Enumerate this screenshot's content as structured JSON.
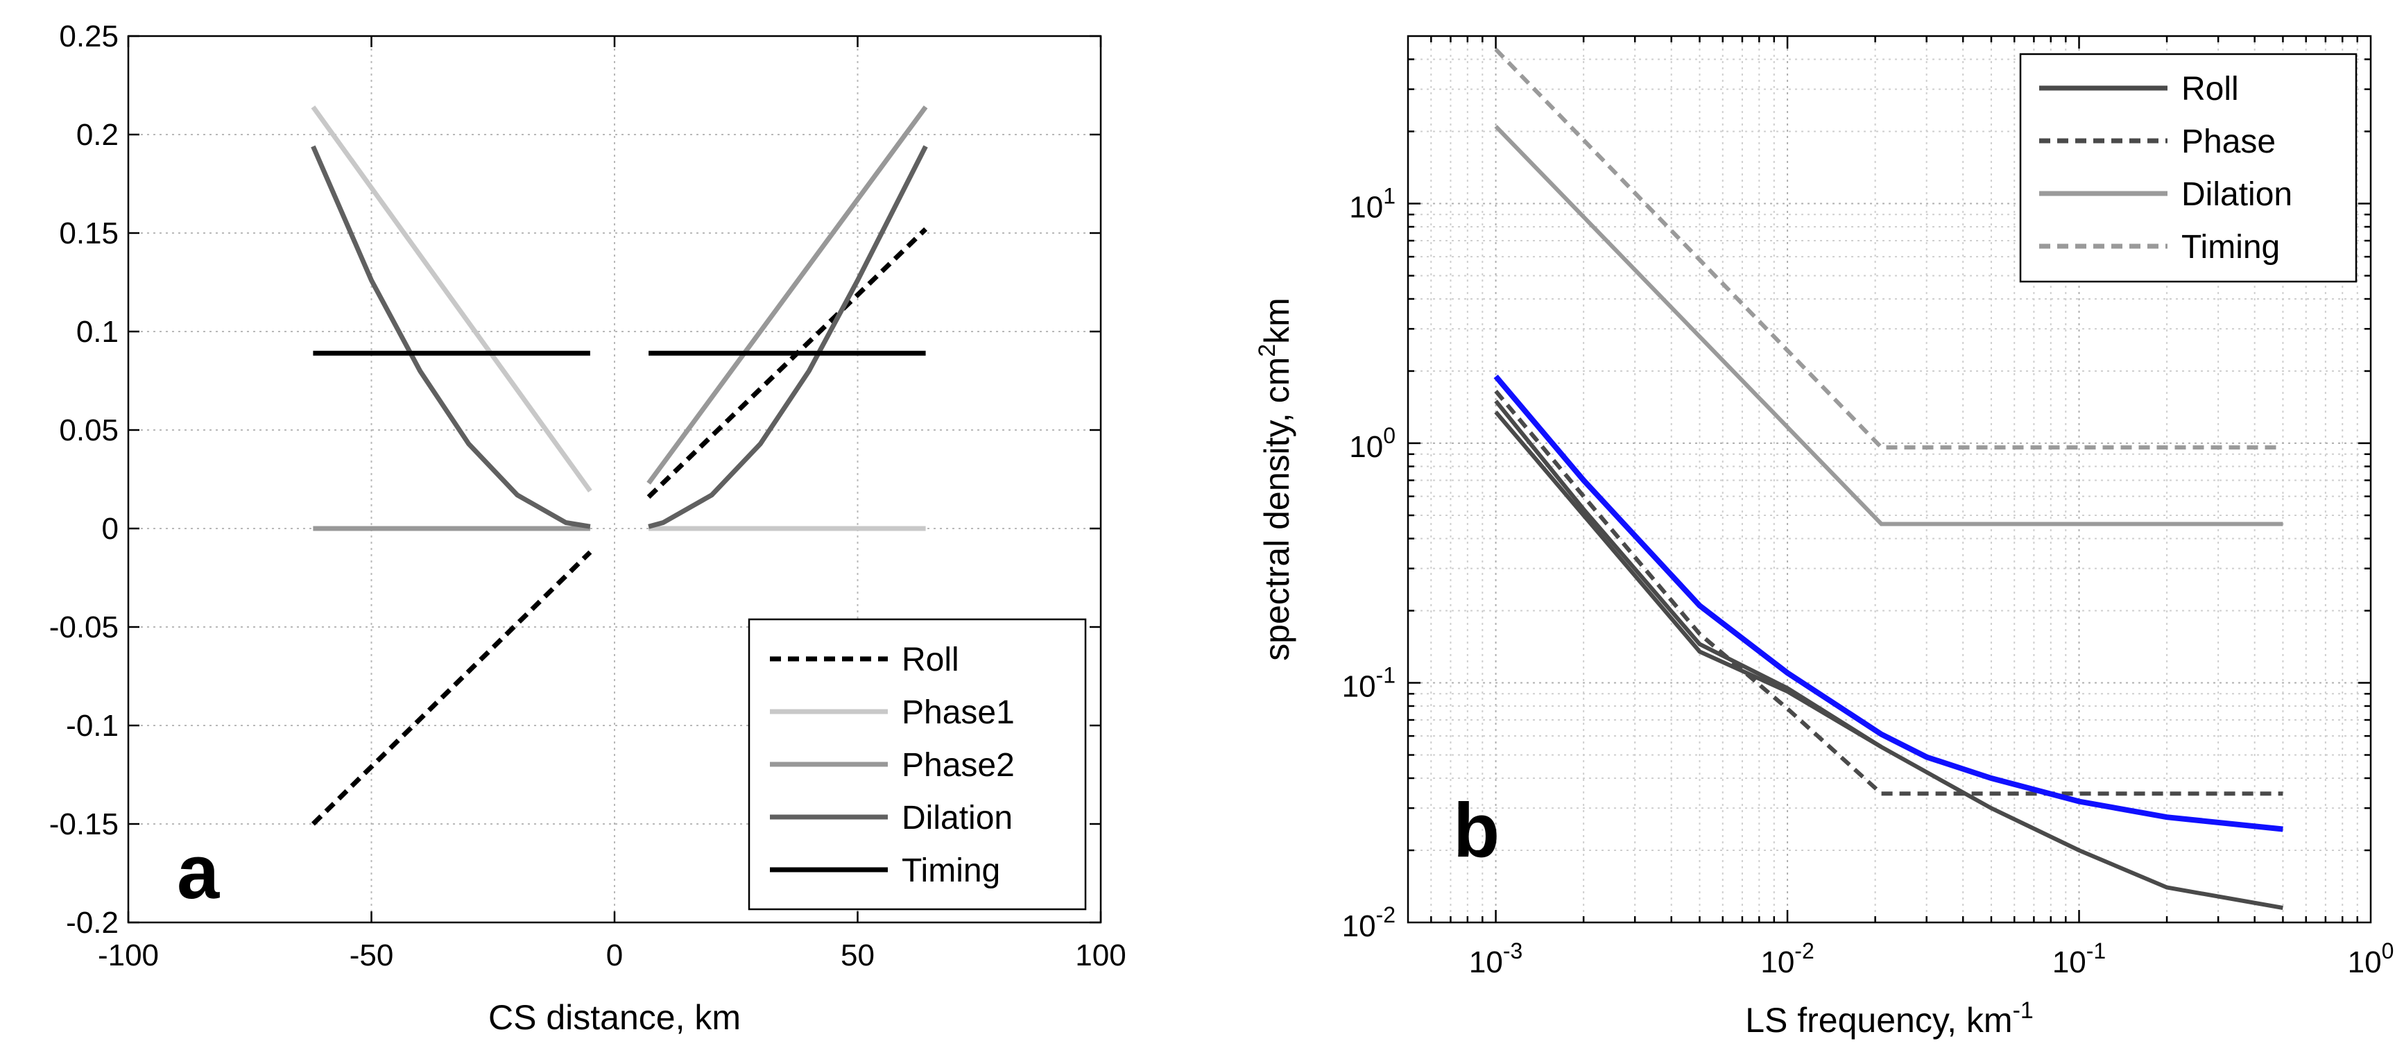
{
  "chart_data": [
    {
      "panel": "a",
      "type": "line",
      "xlabel": "CS distance, km",
      "ylabel": "",
      "xlim": [
        -100,
        100
      ],
      "ylim": [
        -0.2,
        0.25
      ],
      "xticks": [
        -100,
        -50,
        0,
        50,
        100
      ],
      "xtick_labels": [
        "-100",
        "-50",
        "0",
        "50",
        "100"
      ],
      "yticks": [
        -0.2,
        -0.15,
        -0.1,
        -0.05,
        0,
        0.05,
        0.1,
        0.15,
        0.2,
        0.25
      ],
      "ytick_labels": [
        "-0.2",
        "-0.15",
        "-0.1",
        "-0.05",
        "0",
        "0.05",
        "0.1",
        "0.15",
        "0.2",
        "0.25"
      ],
      "grid": true,
      "legend_position": "bottom-right",
      "series": [
        {
          "name": "Roll",
          "style": "dashed",
          "color": "#000000",
          "segments": [
            {
              "x": [
                -62,
                -5
              ],
              "y": [
                -0.15,
                -0.012
              ]
            },
            {
              "x": [
                7,
                64
              ],
              "y": [
                0.016,
                0.152
              ]
            }
          ]
        },
        {
          "name": "Phase1",
          "style": "solid",
          "color": "#c8c8c8",
          "segments": [
            {
              "x": [
                -62,
                -5
              ],
              "y": [
                0.214,
                0.019
              ]
            },
            {
              "x": [
                7,
                64
              ],
              "y": [
                0,
                0
              ]
            }
          ]
        },
        {
          "name": "Phase2",
          "style": "solid",
          "color": "#989898",
          "segments": [
            {
              "x": [
                -62,
                -5
              ],
              "y": [
                0,
                0
              ]
            },
            {
              "x": [
                7,
                64
              ],
              "y": [
                0.023,
                0.214
              ]
            }
          ]
        },
        {
          "name": "Dilation",
          "style": "solid",
          "color": "#606060",
          "segments": [
            {
              "x": [
                -62,
                -50,
                -40,
                -30,
                -20,
                -10,
                -5
              ],
              "y": [
                0.194,
                0.126,
                0.08,
                0.043,
                0.017,
                0.003,
                0.001
              ]
            },
            {
              "x": [
                7,
                10,
                20,
                30,
                40,
                50,
                64
              ],
              "y": [
                0.001,
                0.003,
                0.017,
                0.043,
                0.08,
                0.126,
                0.194
              ]
            }
          ]
        },
        {
          "name": "Timing",
          "style": "solid",
          "color": "#000000",
          "segments": [
            {
              "x": [
                -62,
                -5
              ],
              "y": [
                0.089,
                0.089
              ]
            },
            {
              "x": [
                7,
                64
              ],
              "y": [
                0.089,
                0.089
              ]
            }
          ]
        }
      ]
    },
    {
      "panel": "b",
      "type": "line",
      "xscale": "log",
      "yscale": "log",
      "xlabel": "LS frequency, km",
      "xlabel_superscript": "-1",
      "ylabel": "spectral density, cm",
      "ylabel_superscript": "2",
      "ylabel_suffix": "km",
      "xlim": [
        0.0005,
        1
      ],
      "ylim": [
        0.01,
        50
      ],
      "xtick_exponents": [
        "-3",
        "-2",
        "-1",
        "0"
      ],
      "ytick_exponents": [
        "-2",
        "-1",
        "0",
        "1"
      ],
      "tick_base": "10",
      "grid": true,
      "minor_grid": true,
      "legend_position": "top-right",
      "series": [
        {
          "name": "Roll",
          "style": "solid",
          "color": "#4a4a4a",
          "in_legend": true,
          "x": [
            0.001,
            0.002,
            0.005,
            0.01,
            0.021,
            0.05,
            0.1,
            0.2,
            0.5
          ],
          "y": [
            1.35,
            0.5,
            0.135,
            0.092,
            0.054,
            0.03,
            0.02,
            0.014,
            0.0115
          ]
        },
        {
          "name": "Phase",
          "style": "dashed",
          "color": "#4a4a4a",
          "in_legend": true,
          "x": [
            0.001,
            0.002,
            0.005,
            0.01,
            0.021,
            0.05,
            0.1,
            0.5
          ],
          "y": [
            1.65,
            0.6,
            0.16,
            0.078,
            0.0345,
            0.0345,
            0.0345,
            0.0345
          ]
        },
        {
          "name": "Dilation",
          "style": "solid",
          "color": "#9a9a9a",
          "in_legend": true,
          "x": [
            0.001,
            0.021,
            0.5
          ],
          "y": [
            21,
            0.46,
            0.46
          ]
        },
        {
          "name": "Timing",
          "style": "dashed",
          "color": "#9a9a9a",
          "in_legend": true,
          "x": [
            0.001,
            0.021,
            0.5
          ],
          "y": [
            44,
            0.96,
            0.96
          ]
        },
        {
          "name": "",
          "style": "solid",
          "color": "#1010ff",
          "in_legend": false,
          "x": [
            0.001,
            0.002,
            0.005,
            0.01,
            0.021,
            0.03,
            0.05,
            0.1,
            0.2,
            0.5
          ],
          "y": [
            1.9,
            0.7,
            0.21,
            0.11,
            0.061,
            0.049,
            0.04,
            0.032,
            0.0275,
            0.0245
          ]
        },
        {
          "name": "",
          "style": "solid",
          "color": "#4a4a4a",
          "in_legend": false,
          "x": [
            0.001,
            0.002,
            0.005,
            0.01,
            0.021
          ],
          "y": [
            1.5,
            0.53,
            0.145,
            0.095,
            0.054
          ]
        }
      ]
    }
  ]
}
